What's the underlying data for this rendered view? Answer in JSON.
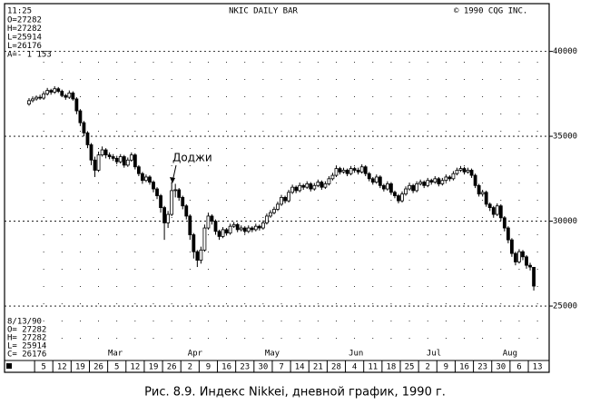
{
  "chart_data": {
    "type": "candlestick",
    "title": "NKIC DAILY BAR",
    "copyright": "© 1990 CQG INC.",
    "time": "11:25",
    "header_readout": [
      "O=27282",
      "H=27282",
      "L=25914",
      "L=26176",
      "A=- 1 153"
    ],
    "footer_date": "8/13/90",
    "footer_readout": [
      "O= 27282",
      "H= 27282",
      "L= 25914",
      "C= 26176"
    ],
    "annotation": "Доджи",
    "caption": "Рис. 8.9. Индекс Nikkei, дневной график, 1990 г.",
    "ylim": [
      21900,
      42600
    ],
    "yticks": [
      25000,
      30000,
      35000,
      40000
    ],
    "xlim": [
      -10.7,
      138.2
    ],
    "xticks": [
      {
        "value": 0,
        "label": "5"
      },
      {
        "value": 5,
        "label": "12"
      },
      {
        "value": 10,
        "label": "19"
      },
      {
        "value": 15,
        "label": "26"
      },
      {
        "value": 20,
        "label": "5"
      },
      {
        "value": 25,
        "label": "12"
      },
      {
        "value": 30,
        "label": "19"
      },
      {
        "value": 35,
        "label": "26"
      },
      {
        "value": 40,
        "label": "2"
      },
      {
        "value": 45,
        "label": "9"
      },
      {
        "value": 50,
        "label": "16"
      },
      {
        "value": 55,
        "label": "23"
      },
      {
        "value": 60,
        "label": "30"
      },
      {
        "value": 65,
        "label": "7"
      },
      {
        "value": 70,
        "label": "14"
      },
      {
        "value": 75,
        "label": "21"
      },
      {
        "value": 80,
        "label": "28"
      },
      {
        "value": 85,
        "label": "4"
      },
      {
        "value": 90,
        "label": "11"
      },
      {
        "value": 95,
        "label": "18"
      },
      {
        "value": 100,
        "label": "25"
      },
      {
        "value": 105,
        "label": "2"
      },
      {
        "value": 110,
        "label": "9"
      },
      {
        "value": 115,
        "label": "16"
      },
      {
        "value": 120,
        "label": "23"
      },
      {
        "value": 125,
        "label": "30"
      },
      {
        "value": 130,
        "label": "6"
      },
      {
        "value": 135,
        "label": "13"
      }
    ],
    "month_labels": [
      {
        "value": 19.6,
        "label": "Mar"
      },
      {
        "value": 41.4,
        "label": "Apr"
      },
      {
        "value": 62.5,
        "label": "May"
      },
      {
        "value": 85.4,
        "label": "Jun"
      },
      {
        "value": 106.7,
        "label": "Jul"
      },
      {
        "value": 127.5,
        "label": "Aug"
      }
    ],
    "grid": true,
    "color": "#000000",
    "x": [
      -4,
      -3,
      -2,
      -1,
      0,
      1,
      2,
      3,
      4,
      5,
      6,
      7,
      8,
      9,
      10,
      11,
      12,
      13,
      14,
      15,
      16,
      17,
      18,
      19,
      20,
      21,
      22,
      23,
      24,
      25,
      26,
      27,
      28,
      29,
      30,
      31,
      32,
      33,
      34,
      35,
      36,
      37,
      38,
      39,
      40,
      41,
      42,
      43,
      44,
      45,
      46,
      47,
      48,
      49,
      50,
      51,
      52,
      53,
      54,
      55,
      56,
      57,
      58,
      59,
      60,
      61,
      62,
      63,
      64,
      65,
      66,
      67,
      68,
      69,
      70,
      71,
      72,
      73,
      74,
      75,
      76,
      77,
      78,
      79,
      80,
      81,
      82,
      83,
      84,
      85,
      86,
      87,
      88,
      89,
      90,
      91,
      92,
      93,
      94,
      95,
      96,
      97,
      98,
      99,
      100,
      101,
      102,
      103,
      104,
      105,
      106,
      107,
      108,
      109,
      110,
      111,
      112,
      113,
      114,
      115,
      116,
      117,
      118,
      119,
      120,
      121,
      122,
      123,
      124,
      125,
      126,
      127,
      128,
      129,
      130,
      131,
      132,
      133,
      134
    ],
    "open": [
      36900,
      37100,
      37200,
      37300,
      37250,
      37500,
      37700,
      37600,
      37800,
      37650,
      37400,
      37300,
      37550,
      37200,
      36500,
      35800,
      35200,
      34500,
      33600,
      33000,
      33900,
      34200,
      33900,
      33800,
      33700,
      33500,
      33800,
      33300,
      33600,
      33900,
      33200,
      32800,
      32400,
      32600,
      32300,
      31900,
      31500,
      30800,
      29900,
      30400,
      31800,
      31850,
      31400,
      30900,
      30300,
      29200,
      28200,
      27700,
      28300,
      29600,
      30300,
      30000,
      29400,
      29100,
      29500,
      29300,
      29700,
      29800,
      29500,
      29600,
      29400,
      29600,
      29500,
      29700,
      29600,
      29900,
      30300,
      30500,
      30700,
      31000,
      31400,
      31200,
      31700,
      32000,
      31800,
      32100,
      32000,
      32200,
      31900,
      32100,
      32300,
      32000,
      32200,
      32500,
      32700,
      33100,
      32900,
      33000,
      32800,
      33100,
      33000,
      32900,
      33200,
      32800,
      32500,
      32300,
      32600,
      32100,
      31900,
      32200,
      31700,
      31500,
      31200,
      31600,
      31900,
      32100,
      31800,
      32200,
      32300,
      32100,
      32400,
      32300,
      32500,
      32200,
      32400,
      32600,
      32500,
      32800,
      33000,
      33100,
      32900,
      33000,
      32700,
      32100,
      31600,
      31700,
      31000,
      30800,
      30400,
      30900,
      30200,
      29600,
      28900,
      28100,
      27600,
      28200,
      27900,
      27400,
      27282
    ],
    "high": [
      37250,
      37350,
      37400,
      37450,
      37650,
      37850,
      37800,
      37950,
      37900,
      37750,
      37500,
      37700,
      37650,
      37300,
      36600,
      35900,
      35300,
      34600,
      33800,
      34100,
      34400,
      34300,
      34050,
      33950,
      33850,
      33950,
      33900,
      33750,
      34050,
      34000,
      33300,
      32900,
      32750,
      32700,
      32400,
      32000,
      31600,
      30900,
      30600,
      32300,
      32200,
      31950,
      31500,
      31000,
      30400,
      29300,
      28300,
      28500,
      29800,
      30500,
      30400,
      30100,
      29500,
      29650,
      29600,
      29850,
      29950,
      29900,
      29750,
      29700,
      29750,
      29700,
      29850,
      29800,
      30050,
      30450,
      30650,
      30850,
      31150,
      31550,
      31500,
      31850,
      32150,
      32100,
      32250,
      32200,
      32350,
      32300,
      32250,
      32450,
      32400,
      32350,
      32650,
      32850,
      33250,
      33200,
      33150,
      33100,
      33250,
      33200,
      33150,
      33350,
      33300,
      32900,
      32600,
      32750,
      32700,
      32200,
      32350,
      32300,
      31800,
      31600,
      31750,
      32050,
      32250,
      32200,
      32350,
      32450,
      32400,
      32550,
      32500,
      32650,
      32600,
      32550,
      32750,
      32700,
      32950,
      33150,
      33250,
      33200,
      33150,
      33100,
      32800,
      32200,
      31850,
      31800,
      31100,
      30900,
      31050,
      31000,
      30300,
      29700,
      29000,
      28200,
      28350,
      28300,
      28000,
      27550,
      27282
    ],
    "low": [
      36800,
      37000,
      37100,
      37150,
      37150,
      37400,
      37450,
      37500,
      37550,
      37300,
      37150,
      37200,
      37100,
      36300,
      35600,
      35000,
      34300,
      33300,
      32600,
      32900,
      33800,
      33700,
      33650,
      33550,
      33350,
      33400,
      33150,
      33200,
      33500,
      33050,
      32650,
      32200,
      32300,
      32150,
      31700,
      31300,
      30500,
      28900,
      29600,
      30300,
      31400,
      31200,
      30700,
      30100,
      28900,
      27800,
      27300,
      27500,
      28200,
      29500,
      29800,
      29200,
      28900,
      29000,
      29150,
      29200,
      29600,
      29350,
      29400,
      29250,
      29300,
      29350,
      29400,
      29450,
      29500,
      29800,
      30200,
      30400,
      30600,
      30900,
      31050,
      31100,
      31600,
      31650,
      31700,
      31850,
      31900,
      31750,
      31800,
      32000,
      31850,
      31900,
      32100,
      32400,
      32600,
      32750,
      32800,
      32650,
      32700,
      32850,
      32750,
      32800,
      32650,
      32350,
      32150,
      32200,
      31950,
      31750,
      31800,
      31550,
      31350,
      31050,
      31100,
      31500,
      31800,
      31650,
      31700,
      32100,
      31950,
      32000,
      32150,
      32200,
      32050,
      32100,
      32300,
      32350,
      32400,
      32700,
      32900,
      32750,
      32800,
      32550,
      31950,
      31450,
      31450,
      30850,
      30600,
      30200,
      30300,
      30000,
      29400,
      28700,
      27900,
      27400,
      27500,
      27700,
      27200,
      27100,
      25914
    ],
    "close": [
      37100,
      37200,
      37300,
      37250,
      37500,
      37700,
      37600,
      37800,
      37650,
      37400,
      37300,
      37550,
      37200,
      36500,
      35800,
      35200,
      34500,
      33600,
      33000,
      33900,
      34200,
      33900,
      33800,
      33700,
      33500,
      33800,
      33300,
      33600,
      33900,
      33200,
      32800,
      32400,
      32600,
      32300,
      31900,
      31500,
      30800,
      29900,
      30400,
      31800,
      31850,
      31400,
      30900,
      30300,
      29200,
      28200,
      27700,
      28300,
      29600,
      30300,
      30000,
      29400,
      29100,
      29500,
      29300,
      29700,
      29800,
      29500,
      29600,
      29400,
      29600,
      29500,
      29700,
      29600,
      29900,
      30300,
      30500,
      30700,
      31000,
      31400,
      31200,
      31700,
      32000,
      31800,
      32100,
      32000,
      32200,
      31900,
      32100,
      32300,
      32000,
      32200,
      32500,
      32700,
      33100,
      32900,
      33000,
      32800,
      33100,
      33000,
      32900,
      33200,
      32800,
      32500,
      32300,
      32600,
      32100,
      31900,
      32200,
      31700,
      31500,
      31200,
      31600,
      31900,
      32100,
      31800,
      32200,
      32300,
      32100,
      32400,
      32300,
      32500,
      32200,
      32400,
      32600,
      32500,
      32800,
      33000,
      33100,
      32900,
      33000,
      32700,
      32100,
      31600,
      31700,
      31000,
      30800,
      30400,
      30900,
      30200,
      29600,
      28900,
      28100,
      27600,
      28200,
      27900,
      27400,
      27300,
      26176
    ]
  }
}
